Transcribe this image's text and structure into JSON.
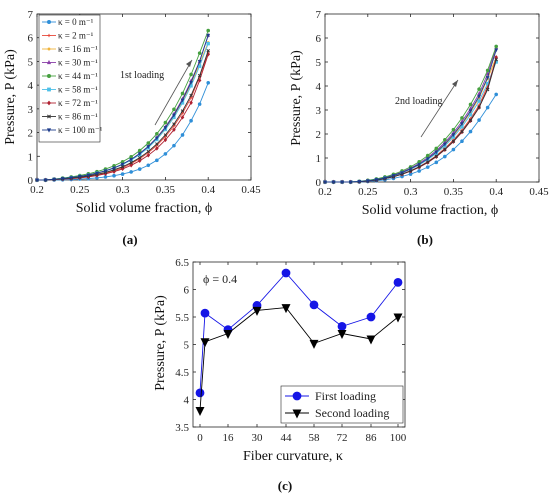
{
  "panels": [
    {
      "label": "(a)",
      "annotation": "1st loading",
      "xlabel": "Solid volume fraction, ϕ",
      "ylabel": "Pressure, P (kPa)",
      "xlim": [
        0.2,
        0.45
      ],
      "ylim": [
        0,
        7
      ],
      "xticks": [
        "0.2",
        "0.25",
        "0.3",
        "0.35",
        "0.4",
        "0.45"
      ],
      "yticks": [
        "0",
        "1",
        "2",
        "3",
        "4",
        "5",
        "6",
        "7"
      ],
      "legend_position": "top-left"
    },
    {
      "label": "(b)",
      "annotation": "2nd loading",
      "xlabel": "Solid volume fraction, ϕ",
      "ylabel": "Pressure, P (kPa)",
      "xlim": [
        0.2,
        0.45
      ],
      "ylim": [
        0,
        7
      ],
      "xticks": [
        "0.2",
        "0.25",
        "0.3",
        "0.35",
        "0.4",
        "0.45"
      ],
      "yticks": [
        "0",
        "1",
        "2",
        "3",
        "4",
        "5",
        "6",
        "7"
      ],
      "legend_position": "none"
    },
    {
      "label": "(c)",
      "annotation": "ϕ = 0.4",
      "xlabel": "Fiber curvature, κ",
      "ylabel": "Pressure, P (kPa)",
      "ylim": [
        3.5,
        6.5
      ],
      "xticks": [
        "0",
        "16",
        "30",
        "44",
        "58",
        "72",
        "86",
        "100"
      ],
      "yticks": [
        "3.5",
        "4",
        "4.5",
        "5",
        "5.5",
        "6",
        "6.5"
      ],
      "legend_position": "bottom-right"
    }
  ],
  "chart_data": [
    {
      "type": "line",
      "panel": "a",
      "x": [
        0.2,
        0.21,
        0.22,
        0.23,
        0.24,
        0.25,
        0.26,
        0.27,
        0.28,
        0.29,
        0.3,
        0.31,
        0.32,
        0.33,
        0.34,
        0.35,
        0.36,
        0.37,
        0.38,
        0.39,
        0.4
      ],
      "series": [
        {
          "name": "κ = 0 m⁻¹",
          "color": "#2f8fd8",
          "marker": "circle",
          "values": [
            0,
            0,
            0,
            0.01,
            0.02,
            0.04,
            0.06,
            0.09,
            0.13,
            0.18,
            0.25,
            0.34,
            0.46,
            0.62,
            0.83,
            1.1,
            1.45,
            1.9,
            2.5,
            3.2,
            4.1
          ]
        },
        {
          "name": "κ = 2 m⁻¹",
          "color": "#e84a3c",
          "marker": "plus",
          "values": [
            0,
            0,
            0.02,
            0.04,
            0.06,
            0.1,
            0.15,
            0.21,
            0.29,
            0.39,
            0.52,
            0.69,
            0.9,
            1.15,
            1.46,
            1.83,
            2.28,
            2.82,
            3.47,
            4.35,
            5.35
          ]
        },
        {
          "name": "κ = 16 m⁻¹",
          "color": "#f0b43c",
          "marker": "star",
          "values": [
            0,
            0,
            0.03,
            0.06,
            0.09,
            0.14,
            0.2,
            0.28,
            0.38,
            0.5,
            0.66,
            0.86,
            1.1,
            1.39,
            1.75,
            2.18,
            2.7,
            3.32,
            4.05,
            4.9,
            5.8
          ]
        },
        {
          "name": "κ = 30 m⁻¹",
          "color": "#8a3fa8",
          "marker": "triangle",
          "values": [
            0,
            0,
            0.03,
            0.06,
            0.1,
            0.15,
            0.21,
            0.29,
            0.39,
            0.51,
            0.67,
            0.87,
            1.12,
            1.42,
            1.79,
            2.24,
            2.78,
            3.42,
            4.18,
            5.0,
            6.1
          ]
        },
        {
          "name": "κ = 44 m⁻¹",
          "color": "#46a040",
          "marker": "circle",
          "values": [
            0,
            0,
            0.04,
            0.08,
            0.13,
            0.19,
            0.26,
            0.35,
            0.46,
            0.6,
            0.77,
            0.98,
            1.24,
            1.56,
            1.95,
            2.42,
            2.98,
            3.65,
            4.45,
            5.35,
            6.3
          ]
        },
        {
          "name": "κ = 58 m⁻¹",
          "color": "#4fc0e8",
          "marker": "square",
          "values": [
            0,
            0,
            0.03,
            0.06,
            0.1,
            0.15,
            0.21,
            0.29,
            0.38,
            0.5,
            0.65,
            0.84,
            1.07,
            1.36,
            1.71,
            2.13,
            2.64,
            3.25,
            3.97,
            4.8,
            5.75
          ]
        },
        {
          "name": "κ = 72 m⁻¹",
          "color": "#b02232",
          "marker": "diamond",
          "values": [
            0,
            0,
            0.02,
            0.04,
            0.06,
            0.09,
            0.13,
            0.19,
            0.26,
            0.35,
            0.47,
            0.62,
            0.81,
            1.04,
            1.33,
            1.69,
            2.12,
            2.64,
            3.26,
            4.2,
            5.3
          ]
        },
        {
          "name": "κ = 86 m⁻¹",
          "color": "#333333",
          "marker": "x",
          "values": [
            0,
            0,
            0.02,
            0.05,
            0.08,
            0.12,
            0.17,
            0.24,
            0.32,
            0.43,
            0.56,
            0.73,
            0.94,
            1.2,
            1.52,
            1.9,
            2.36,
            2.91,
            3.57,
            4.4,
            5.45
          ]
        },
        {
          "name": "κ = 100 m⁻¹",
          "color": "#1f3d8c",
          "marker": "triangle-down",
          "values": [
            0,
            0,
            0.03,
            0.06,
            0.1,
            0.15,
            0.21,
            0.29,
            0.39,
            0.51,
            0.67,
            0.87,
            1.11,
            1.41,
            1.77,
            2.21,
            2.74,
            3.37,
            4.12,
            5.0,
            6.1
          ]
        }
      ]
    },
    {
      "type": "line",
      "panel": "b",
      "x": [
        0.2,
        0.21,
        0.22,
        0.23,
        0.24,
        0.25,
        0.26,
        0.27,
        0.28,
        0.29,
        0.3,
        0.31,
        0.32,
        0.33,
        0.34,
        0.35,
        0.36,
        0.37,
        0.38,
        0.39,
        0.4
      ],
      "series": [
        {
          "name": "κ = 0 m⁻¹",
          "color": "#2f8fd8",
          "marker": "circle",
          "values": [
            0,
            0,
            0,
            0,
            0,
            0.02,
            0.05,
            0.09,
            0.15,
            0.23,
            0.33,
            0.46,
            0.62,
            0.82,
            1.06,
            1.35,
            1.7,
            2.1,
            2.58,
            3.1,
            3.65
          ]
        },
        {
          "name": "κ = 2 m⁻¹",
          "color": "#e84a3c",
          "marker": "plus",
          "values": [
            0,
            0,
            0,
            0,
            0.01,
            0.04,
            0.08,
            0.14,
            0.22,
            0.33,
            0.47,
            0.64,
            0.85,
            1.1,
            1.4,
            1.75,
            2.16,
            2.64,
            3.2,
            4.0,
            5.05
          ]
        },
        {
          "name": "κ = 16 m⁻¹",
          "color": "#f0b43c",
          "marker": "star",
          "values": [
            0,
            0,
            0,
            0,
            0.02,
            0.05,
            0.1,
            0.17,
            0.26,
            0.38,
            0.53,
            0.72,
            0.95,
            1.22,
            1.55,
            1.93,
            2.38,
            2.9,
            3.5,
            4.3,
            5.2
          ]
        },
        {
          "name": "κ = 30 m⁻¹",
          "color": "#8a3fa8",
          "marker": "triangle",
          "values": [
            0,
            0,
            0,
            0,
            0.02,
            0.06,
            0.11,
            0.19,
            0.29,
            0.42,
            0.58,
            0.78,
            1.02,
            1.31,
            1.65,
            2.05,
            2.52,
            3.06,
            3.68,
            4.5,
            5.6
          ]
        },
        {
          "name": "κ = 44 m⁻¹",
          "color": "#46a040",
          "marker": "circle",
          "values": [
            0,
            0,
            0,
            0,
            0.03,
            0.07,
            0.13,
            0.21,
            0.32,
            0.46,
            0.63,
            0.84,
            1.1,
            1.4,
            1.76,
            2.18,
            2.67,
            3.23,
            3.87,
            4.65,
            5.65
          ]
        },
        {
          "name": "κ = 58 m⁻¹",
          "color": "#4fc0e8",
          "marker": "square",
          "values": [
            0,
            0,
            0,
            0,
            0.02,
            0.05,
            0.1,
            0.17,
            0.26,
            0.38,
            0.53,
            0.71,
            0.93,
            1.19,
            1.5,
            1.87,
            2.3,
            2.8,
            3.37,
            4.1,
            5.0
          ]
        },
        {
          "name": "κ = 72 m⁻¹",
          "color": "#b02232",
          "marker": "diamond",
          "values": [
            0,
            0,
            0,
            0,
            0.01,
            0.04,
            0.08,
            0.14,
            0.22,
            0.32,
            0.45,
            0.61,
            0.81,
            1.05,
            1.34,
            1.68,
            2.08,
            2.55,
            3.1,
            3.9,
            5.2
          ]
        },
        {
          "name": "κ = 86 m⁻¹",
          "color": "#333333",
          "marker": "x",
          "values": [
            0,
            0,
            0,
            0,
            0.01,
            0.04,
            0.08,
            0.14,
            0.22,
            0.33,
            0.46,
            0.63,
            0.83,
            1.07,
            1.36,
            1.7,
            2.1,
            2.57,
            3.12,
            3.85,
            5.1
          ]
        },
        {
          "name": "κ = 100 m⁻¹",
          "color": "#1f3d8c",
          "marker": "triangle-down",
          "values": [
            0,
            0,
            0,
            0,
            0.02,
            0.05,
            0.1,
            0.17,
            0.27,
            0.39,
            0.55,
            0.74,
            0.97,
            1.25,
            1.58,
            1.97,
            2.43,
            2.96,
            3.57,
            4.35,
            5.5
          ]
        }
      ]
    },
    {
      "type": "line",
      "panel": "c",
      "categories": [
        "0",
        "2",
        "16",
        "30",
        "44",
        "58",
        "72",
        "86",
        "100"
      ],
      "x": [
        0,
        2,
        16,
        30,
        44,
        58,
        72,
        86,
        100
      ],
      "series": [
        {
          "name": "First loading",
          "color": "#1515e6",
          "marker": "circle",
          "values": [
            4.12,
            5.57,
            5.27,
            5.71,
            6.3,
            5.72,
            5.33,
            5.5,
            6.13
          ]
        },
        {
          "name": "Second loading",
          "color": "#000000",
          "marker": "triangle-down",
          "values": [
            3.8,
            5.05,
            5.2,
            5.62,
            5.67,
            5.02,
            5.2,
            5.1,
            5.5
          ]
        }
      ]
    }
  ]
}
